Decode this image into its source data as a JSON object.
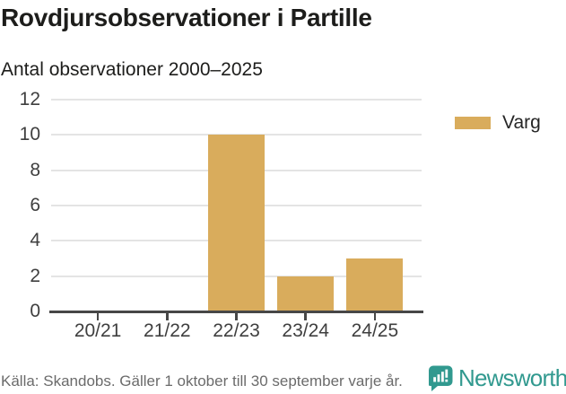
{
  "chart": {
    "title": "Rovdjursobservationer i Partille",
    "subtitle": "Antal observationer 2000–2025",
    "source": "Källa: Skandobs. Gäller 1 oktober till 30 september varje år."
  },
  "chart_data": {
    "type": "bar",
    "title": "Rovdjursobservationer i Partille",
    "subtitle": "Antal observationer 2000–2025",
    "categories": [
      "20/21",
      "21/22",
      "22/23",
      "23/24",
      "24/25"
    ],
    "series": [
      {
        "name": "Varg",
        "values": [
          0,
          0,
          10,
          2,
          3
        ],
        "color": "#d9ac5c"
      }
    ],
    "xlabel": "",
    "ylabel": "",
    "ylim": [
      0,
      12
    ],
    "yticks": [
      0,
      2,
      4,
      6,
      8,
      10,
      12
    ],
    "grid": true,
    "legend_position": "right"
  },
  "legend": {
    "label": "Varg"
  },
  "colors": {
    "bar": "#d9ac5c",
    "gridline": "#e4e4e4",
    "axis": "#474747",
    "brand_teal": "#31998f"
  },
  "branding": {
    "logo_text": "Newsworthy",
    "logo_icon": "bar-chart-speech-bubble-icon"
  }
}
